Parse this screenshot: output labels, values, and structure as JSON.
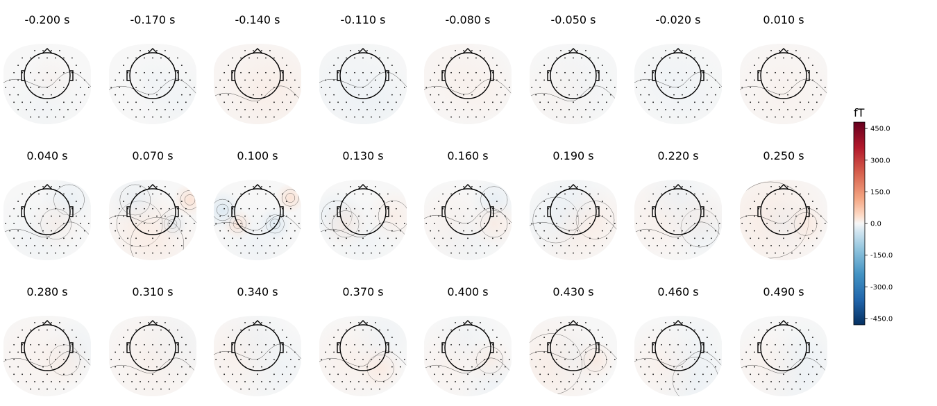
{
  "chart_data": {
    "type": "heatmap",
    "subtype": "topomap-grid",
    "colormap": "RdBu_r",
    "units": "fT",
    "colorbar": {
      "label": "fT",
      "range": [
        -480,
        480
      ],
      "ticks": [
        450.0,
        300.0,
        150.0,
        0.0,
        -150.0,
        -300.0,
        -450.0
      ],
      "tick_labels": [
        "450.0",
        "300.0",
        "150.0",
        "0.0",
        "-150.0",
        "-300.0",
        "-450.0"
      ]
    },
    "panels": [
      {
        "label": "-0.200 s",
        "blobs": [
          [
            0.1,
            -0.1,
            40,
            0.07
          ],
          [
            -0.1,
            0.6,
            70,
            -0.06
          ]
        ]
      },
      {
        "label": "-0.170 s",
        "blobs": [
          [
            0.6,
            0.4,
            60,
            -0.1
          ],
          [
            0.0,
            -0.1,
            40,
            -0.05
          ]
        ]
      },
      {
        "label": "-0.140 s",
        "blobs": [
          [
            0.0,
            0.2,
            120,
            0.18
          ],
          [
            0.5,
            0.1,
            70,
            0.1
          ]
        ]
      },
      {
        "label": "-0.110 s",
        "blobs": [
          [
            -0.3,
            0.1,
            100,
            -0.15
          ],
          [
            0.4,
            0.5,
            60,
            -0.08
          ]
        ]
      },
      {
        "label": "-0.080 s",
        "blobs": [
          [
            -0.3,
            -0.2,
            90,
            0.12
          ],
          [
            0.4,
            0.2,
            60,
            0.05
          ]
        ]
      },
      {
        "label": "-0.050 s",
        "blobs": [
          [
            0.2,
            0.0,
            80,
            -0.06
          ],
          [
            -0.4,
            0.3,
            70,
            0.04
          ]
        ]
      },
      {
        "label": "-0.020 s",
        "blobs": [
          [
            0.3,
            0.3,
            80,
            -0.06
          ],
          [
            -0.3,
            -0.2,
            70,
            -0.04
          ]
        ]
      },
      {
        "label": "0.010 s",
        "blobs": [
          [
            0.0,
            0.2,
            110,
            0.12
          ]
        ]
      },
      {
        "label": "0.040 s",
        "blobs": [
          [
            0.5,
            -0.5,
            40,
            -0.35
          ],
          [
            0.2,
            0.1,
            40,
            0.25
          ],
          [
            -0.2,
            0.4,
            70,
            -0.1
          ]
        ]
      },
      {
        "label": "0.070 s",
        "blobs": [
          [
            0.85,
            -0.5,
            25,
            1.0
          ],
          [
            0.45,
            0.1,
            22,
            -0.75
          ],
          [
            -0.3,
            0.1,
            60,
            0.25
          ],
          [
            -0.4,
            -0.5,
            40,
            -0.35
          ],
          [
            0.1,
            0.6,
            70,
            0.25
          ]
        ]
      },
      {
        "label": "0.100 s",
        "blobs": [
          [
            -0.45,
            0.1,
            22,
            1.0
          ],
          [
            0.4,
            0.1,
            24,
            -0.7
          ],
          [
            -0.8,
            -0.25,
            28,
            -0.9
          ],
          [
            0.75,
            -0.55,
            22,
            0.9
          ],
          [
            0.0,
            0.6,
            60,
            -0.15
          ]
        ]
      },
      {
        "label": "0.130 s",
        "blobs": [
          [
            -0.6,
            -0.1,
            40,
            -0.45
          ],
          [
            -0.4,
            0.1,
            35,
            0.4
          ],
          [
            0.7,
            -0.1,
            40,
            0.3
          ],
          [
            0.0,
            0.5,
            60,
            -0.1
          ]
        ]
      },
      {
        "label": "0.160 s",
        "blobs": [
          [
            0.6,
            -0.5,
            35,
            -0.45
          ],
          [
            0.6,
            0.1,
            35,
            0.4
          ],
          [
            -0.4,
            0.1,
            60,
            0.15
          ],
          [
            0.0,
            0.5,
            60,
            -0.1
          ]
        ]
      },
      {
        "label": "0.190 s",
        "blobs": [
          [
            -0.4,
            0.0,
            60,
            -0.25
          ],
          [
            0.5,
            0.0,
            50,
            0.3
          ],
          [
            0.0,
            -0.6,
            50,
            -0.15
          ],
          [
            0.0,
            0.6,
            60,
            0.15
          ]
        ]
      },
      {
        "label": "0.220 s",
        "blobs": [
          [
            0.5,
            0.2,
            50,
            -0.3
          ],
          [
            -0.4,
            0.0,
            70,
            0.2
          ],
          [
            0.0,
            -0.6,
            50,
            -0.2
          ],
          [
            0.6,
            -0.1,
            40,
            0.15
          ]
        ]
      },
      {
        "label": "0.250 s",
        "blobs": [
          [
            -0.3,
            0.0,
            100,
            0.4
          ],
          [
            0.5,
            0.1,
            30,
            0.4
          ],
          [
            0.0,
            0.1,
            40,
            -0.15
          ]
        ]
      },
      {
        "label": "0.280 s",
        "blobs": [
          [
            0.4,
            0.1,
            40,
            0.3
          ],
          [
            -0.3,
            0.0,
            80,
            0.1
          ],
          [
            0.7,
            -0.2,
            50,
            -0.15
          ]
        ]
      },
      {
        "label": "0.310 s",
        "blobs": [
          [
            0.0,
            0.1,
            90,
            0.2
          ],
          [
            0.6,
            -0.3,
            60,
            -0.1
          ]
        ]
      },
      {
        "label": "0.340 s",
        "blobs": [
          [
            -0.5,
            0.0,
            70,
            0.2
          ],
          [
            0.5,
            0.3,
            60,
            -0.15
          ],
          [
            0.0,
            -0.5,
            50,
            -0.1
          ]
        ]
      },
      {
        "label": "0.370 s",
        "blobs": [
          [
            0.4,
            0.3,
            35,
            0.4
          ],
          [
            -0.3,
            0.1,
            70,
            0.2
          ],
          [
            0.5,
            -0.5,
            50,
            -0.15
          ]
        ]
      },
      {
        "label": "0.400 s",
        "blobs": [
          [
            0.5,
            0.1,
            35,
            0.35
          ],
          [
            -0.4,
            0.2,
            60,
            0.15
          ],
          [
            0.0,
            -0.5,
            50,
            -0.1
          ],
          [
            0.6,
            0.7,
            50,
            -0.15
          ]
        ]
      },
      {
        "label": "0.430 s",
        "blobs": [
          [
            0.5,
            0.1,
            30,
            0.5
          ],
          [
            -0.5,
            0.2,
            80,
            0.35
          ],
          [
            0.0,
            0.0,
            50,
            -0.1
          ]
        ]
      },
      {
        "label": "0.460 s",
        "blobs": [
          [
            0.4,
            0.6,
            60,
            -0.25
          ],
          [
            -0.4,
            0.2,
            60,
            0.2
          ],
          [
            0.4,
            -0.4,
            60,
            -0.1
          ]
        ]
      },
      {
        "label": "0.490 s",
        "blobs": [
          [
            0.4,
            0.5,
            60,
            -0.2
          ],
          [
            -0.4,
            0.2,
            60,
            0.15
          ],
          [
            0.5,
            -0.2,
            50,
            -0.1
          ]
        ]
      }
    ]
  }
}
